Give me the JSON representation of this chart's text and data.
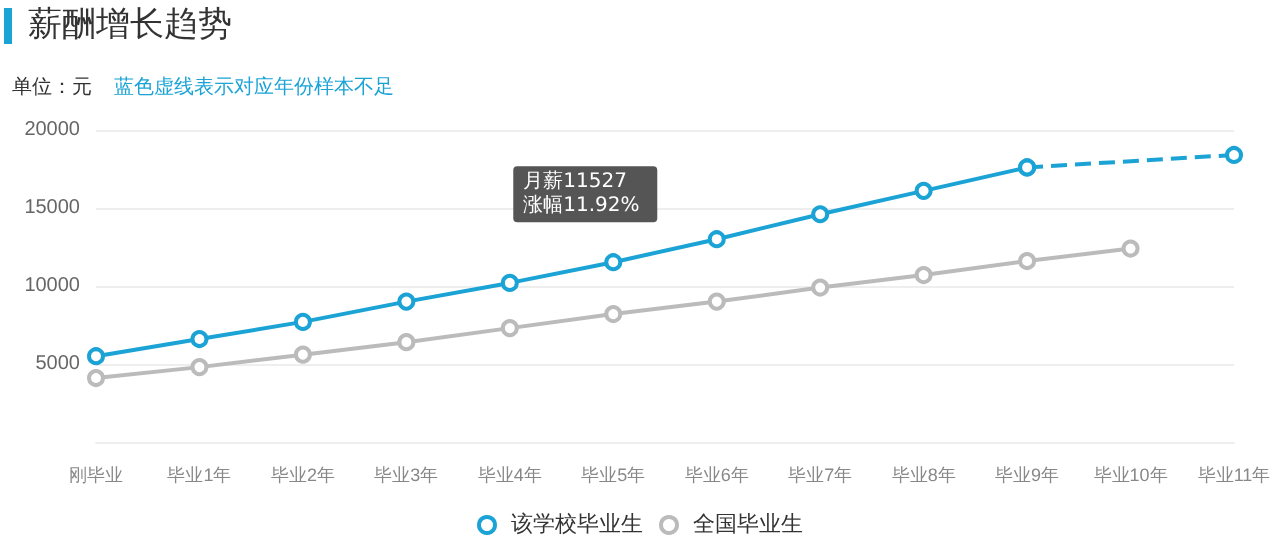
{
  "chart_data": {
    "type": "line",
    "title": "薪酬增长趋势",
    "ylabel": "单位：元",
    "categories": [
      "刚毕业",
      "毕业1年",
      "毕业2年",
      "毕业3年",
      "毕业4年",
      "毕业5年",
      "毕业6年",
      "毕业7年",
      "毕业8年",
      "毕业9年",
      "毕业10年",
      "毕业11年"
    ],
    "series": [
      {
        "name": "该学校毕业生",
        "color": "#1ba3d6",
        "line_style": "solid",
        "values": [
          5500,
          6600,
          7700,
          9000,
          10200,
          11527,
          13000,
          14600,
          16100,
          17600,
          null,
          null
        ]
      },
      {
        "color": "#1ba3d6",
        "line_style": "dashed",
        "values": [
          null,
          null,
          null,
          null,
          null,
          null,
          null,
          null,
          null,
          17600,
          null,
          18400
        ]
      },
      {
        "name": "全国毕业生",
        "color": "#bbbbbb",
        "line_style": "solid",
        "values": [
          4100,
          4800,
          5600,
          6400,
          7300,
          8200,
          9000,
          9900,
          10700,
          11600,
          12400,
          null
        ]
      }
    ],
    "ylim": [
      0,
      20000
    ],
    "yticks": [
      5000,
      10000,
      15000,
      20000
    ],
    "grid": "y",
    "marker": "circle",
    "legend": "bottom",
    "annotations": [
      "蓝色虚线表示对应年份样本不足",
      {
        "text": "月薪11527\n涨幅11.92%",
        "x": "毕业5年",
        "y": 11527
      }
    ]
  }
}
